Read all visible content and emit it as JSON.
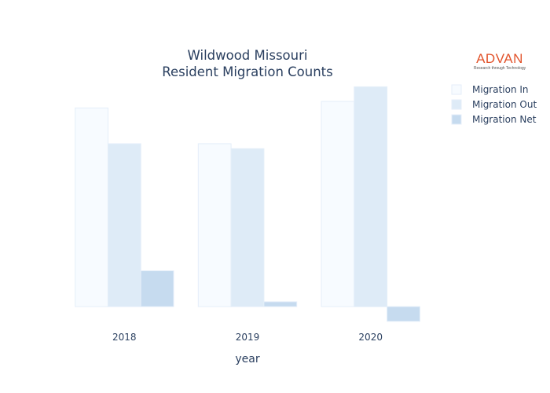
{
  "logo": {
    "word": "ADVAN",
    "tagline": "Research through Technology"
  },
  "chart_data": {
    "type": "bar",
    "title_lines": [
      "Wildwood Missouri",
      "Resident Migration Counts"
    ],
    "xlabel": "year",
    "ylabel": "",
    "categories": [
      "2018",
      "2019",
      "2020"
    ],
    "series": [
      {
        "name": "Migration In",
        "color": "#f7fbff",
        "values": [
          610,
          500,
          630
        ]
      },
      {
        "name": "Migration Out",
        "color": "#deebf7",
        "values": [
          500,
          485,
          675
        ]
      },
      {
        "name": "Migration Net",
        "color": "#c6dbef",
        "values": [
          110,
          15,
          -45
        ]
      }
    ],
    "ylim": [
      -60,
      700
    ],
    "grid": false,
    "y_ticks_shown": false,
    "legend_position": "top-right"
  }
}
